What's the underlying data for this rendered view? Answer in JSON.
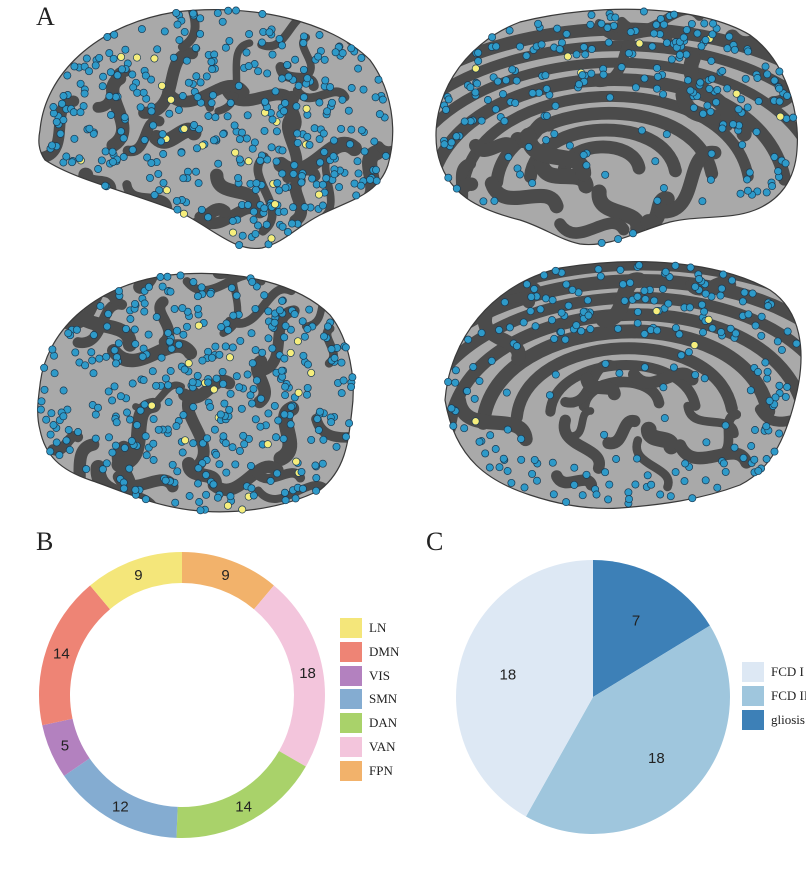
{
  "panels": {
    "a": "A",
    "b": "B",
    "c": "C"
  },
  "brain_figure": {
    "views": [
      {
        "hemisphere": "left",
        "view": "lateral"
      },
      {
        "hemisphere": "left",
        "view": "medial"
      },
      {
        "hemisphere": "right",
        "view": "lateral"
      },
      {
        "hemisphere": "right",
        "view": "medial"
      }
    ],
    "surface_colors": {
      "gyri": "#a9a9a9",
      "sulci": "#4b4b4b",
      "outline": "#3a3a3a"
    },
    "marker_colors": {
      "contacts": "#2e9ac9",
      "highlighted": "#f6ee7c"
    }
  },
  "chart_data": [
    {
      "type": "donut",
      "categories": [
        "LN",
        "DMN",
        "VIS",
        "SMN",
        "DAN",
        "VAN",
        "FPN"
      ],
      "values": [
        9,
        14,
        5,
        12,
        14,
        18,
        9
      ],
      "colors": [
        "#f4e67a",
        "#ee8475",
        "#b381bf",
        "#84acd1",
        "#a9d26a",
        "#f3c5dc",
        "#f2b26b"
      ],
      "slice_order_clockwise_from_top": [
        "FPN",
        "VAN",
        "DAN",
        "SMN",
        "VIS",
        "DMN",
        "LN"
      ],
      "legend_position": "right"
    },
    {
      "type": "pie",
      "categories": [
        "FCD I",
        "FCD II",
        "gliosis"
      ],
      "values": [
        18,
        18,
        7
      ],
      "colors": [
        "#dde8f4",
        "#9fc6dd",
        "#3d80b7"
      ],
      "slice_order_clockwise_from_top": [
        "gliosis",
        "FCD II",
        "FCD I"
      ],
      "legend_position": "right"
    }
  ]
}
